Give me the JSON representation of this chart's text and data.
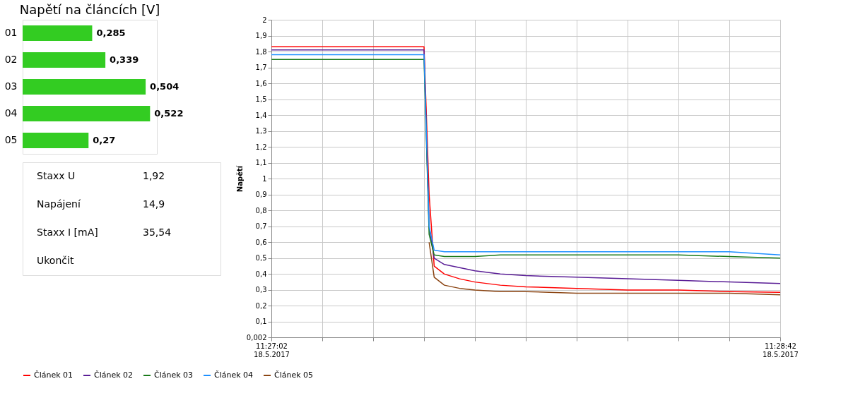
{
  "chart_data": [
    {
      "type": "bar",
      "orientation": "horizontal",
      "title": "Napětí na článcích [V]",
      "categories": [
        "01",
        "02",
        "03",
        "04",
        "05"
      ],
      "values": [
        0.285,
        0.339,
        0.504,
        0.522,
        0.27
      ],
      "color": "#33cc22",
      "value_labels": [
        "0,285",
        "0,339",
        "0,504",
        "0,522",
        "0,27"
      ]
    },
    {
      "type": "other",
      "annotations": [
        "Staxx U",
        "1,92",
        "Napájení",
        "14,9",
        "Staxx I [mA]",
        "35,54",
        "Ukončit"
      ]
    },
    {
      "type": "line",
      "ylabel": "Napětí",
      "legend": "bottom",
      "grid": true,
      "marker": "none",
      "line_style": "solid",
      "x": [
        "2017-05-18T11:27:02",
        "2017-05-18T11:27:12",
        "2017-05-18T11:27:22",
        "2017-05-18T11:27:32",
        "2017-05-18T11:27:33",
        "2017-05-18T11:27:34",
        "2017-05-18T11:27:36",
        "2017-05-18T11:27:39",
        "2017-05-18T11:27:42",
        "2017-05-18T11:27:47",
        "2017-05-18T11:27:52",
        "2017-05-18T11:28:02",
        "2017-05-18T11:28:12",
        "2017-05-18T11:28:22",
        "2017-05-18T11:28:32",
        "2017-05-18T11:28:42"
      ],
      "xlim": [
        "2017-05-18T11:27:02",
        "2017-05-18T11:28:42"
      ],
      "xticks": [
        {
          "value": "2017-05-18T11:27:02",
          "label": "11:27:02\n18.5.2017"
        },
        {
          "value": "2017-05-18T11:27:12",
          "label": null
        },
        {
          "value": "2017-05-18T11:27:22",
          "label": null
        },
        {
          "value": "2017-05-18T11:27:32",
          "label": null
        },
        {
          "value": "2017-05-18T11:27:42",
          "label": null
        },
        {
          "value": "2017-05-18T11:27:52",
          "label": null
        },
        {
          "value": "2017-05-18T11:28:02",
          "label": null
        },
        {
          "value": "2017-05-18T11:28:12",
          "label": null
        },
        {
          "value": "2017-05-18T11:28:22",
          "label": null
        },
        {
          "value": "2017-05-18T11:28:32",
          "label": null
        },
        {
          "value": "2017-05-18T11:28:42",
          "label": "11:28:42\n18.5.2017"
        }
      ],
      "ylim": [
        0.002,
        2
      ],
      "yticks": [
        {
          "value": 0.002,
          "label": "0,002"
        },
        {
          "value": 0.1,
          "label": "0,1"
        },
        {
          "value": 0.2,
          "label": "0,2"
        },
        {
          "value": 0.3,
          "label": "0,3"
        },
        {
          "value": 0.4,
          "label": "0,4"
        },
        {
          "value": 0.5,
          "label": "0,5"
        },
        {
          "value": 0.6,
          "label": "0,6"
        },
        {
          "value": 0.7,
          "label": "0,7"
        },
        {
          "value": 0.8,
          "label": "0,8"
        },
        {
          "value": 0.9,
          "label": "0,9"
        },
        1,
        {
          "value": 1.1,
          "label": "1,1"
        },
        {
          "value": 1.2,
          "label": "1,2"
        },
        {
          "value": 1.3,
          "label": "1,3"
        },
        {
          "value": 1.4,
          "label": "1,4"
        },
        {
          "value": 1.5,
          "label": "1,5"
        },
        {
          "value": 1.6,
          "label": "1,6"
        },
        {
          "value": 1.7,
          "label": "1,7"
        },
        {
          "value": 1.8,
          "label": "1,8"
        },
        {
          "value": 1.9,
          "label": "1,9"
        },
        2
      ],
      "series": [
        {
          "name": "Článek 01",
          "color": "#ff0000",
          "values": [
            1.83,
            1.83,
            1.83,
            1.83,
            0.9,
            0.45,
            0.4,
            0.37,
            0.35,
            0.33,
            0.32,
            0.31,
            0.3,
            0.3,
            0.29,
            0.285
          ]
        },
        {
          "name": "Článek 02",
          "color": "#5a1e96",
          "values": [
            1.81,
            1.81,
            1.81,
            1.81,
            0.7,
            0.5,
            0.46,
            0.44,
            0.42,
            0.4,
            0.39,
            0.38,
            0.37,
            0.36,
            0.35,
            0.34
          ]
        },
        {
          "name": "Článek 03",
          "color": "#1a7a1a",
          "values": [
            1.75,
            1.75,
            1.75,
            1.75,
            0.65,
            0.52,
            0.51,
            0.51,
            0.51,
            0.52,
            0.52,
            0.52,
            0.52,
            0.52,
            0.51,
            0.5
          ]
        },
        {
          "name": "Článek 04",
          "color": "#1e90ff",
          "values": [
            1.78,
            1.78,
            1.78,
            1.78,
            0.7,
            0.55,
            0.54,
            0.54,
            0.54,
            0.54,
            0.54,
            0.54,
            0.54,
            0.54,
            0.54,
            0.52
          ]
        },
        {
          "name": "Článek 05",
          "color": "#8b4513",
          "values": [
            null,
            null,
            null,
            null,
            0.6,
            0.38,
            0.33,
            0.31,
            0.3,
            0.29,
            0.29,
            0.28,
            0.28,
            0.28,
            0.28,
            0.27
          ]
        }
      ]
    }
  ]
}
